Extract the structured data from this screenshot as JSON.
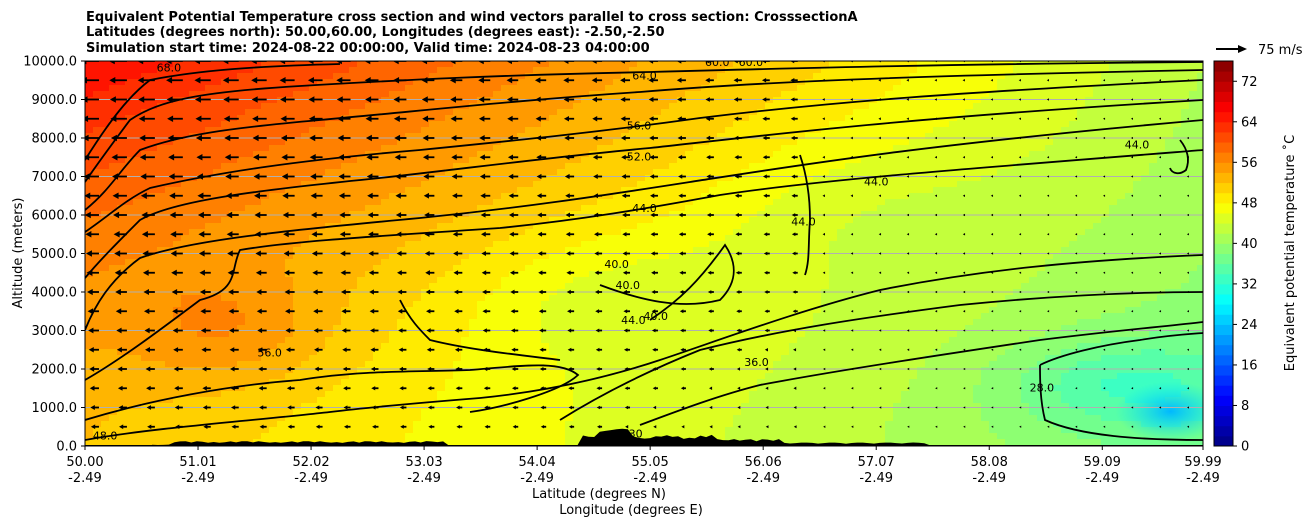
{
  "chart_data": {
    "type": "contourf",
    "title_lines": [
      "Equivalent Potential Temperature cross section and wind vectors parallel to cross section: CrosssectionA",
      "Latitudes (degrees north): 50.00,60.00, Longitudes (degrees east): -2.50,-2.50",
      "Simulation start time: 2024-08-22 00:00:00, Valid time: 2024-08-23 04:00:00"
    ],
    "ylabel": "Altitude (meters)",
    "xlabel_line1": "Latitude (degrees N)",
    "xlabel_line2": "Longitude (degrees E)",
    "ylim": [
      0,
      10000
    ],
    "xlim": [
      50.0,
      59.99
    ],
    "yticks": [
      "0.0",
      "1000.0",
      "2000.0",
      "3000.0",
      "4000.0",
      "5000.0",
      "6000.0",
      "7000.0",
      "8000.0",
      "9000.0",
      "10000.0"
    ],
    "xticks_lat": [
      "50.00",
      "51.01",
      "52.02",
      "53.03",
      "54.04",
      "55.05",
      "56.06",
      "57.07",
      "58.08",
      "59.09",
      "59.99"
    ],
    "xticks_lon": [
      "-2.49",
      "-2.49",
      "-2.49",
      "-2.49",
      "-2.49",
      "-2.49",
      "-2.49",
      "-2.49",
      "-2.49",
      "-2.49",
      "-2.49"
    ],
    "grid_y": true,
    "colorbar": {
      "label": "Equivalent potential temperature ˚C",
      "range": [
        0,
        76
      ],
      "ticks": [
        "0",
        "8",
        "16",
        "24",
        "32",
        "40",
        "48",
        "56",
        "64",
        "72"
      ],
      "colormap": "jet"
    },
    "contour_levels_labeled": [
      "68.0",
      "64.0",
      "60.0",
      "56.0",
      "52.0",
      "48.0",
      "44.0",
      "40.0",
      "36.0",
      "30.0",
      "28.0"
    ],
    "contour_labels": [
      {
        "text": "68.0",
        "lat": 50.75,
        "alt": 9800
      },
      {
        "text": "64.0",
        "lat": 55.0,
        "alt": 9600
      },
      {
        "text": "60.0",
        "lat": 55.65,
        "alt": 9950
      },
      {
        "text": "60.0",
        "lat": 55.95,
        "alt": 9950
      },
      {
        "text": "56.0",
        "lat": 54.95,
        "alt": 8300
      },
      {
        "text": "52.0",
        "lat": 54.95,
        "alt": 7500
      },
      {
        "text": "44.0",
        "lat": 55.0,
        "alt": 6150
      },
      {
        "text": "44.0",
        "lat": 57.07,
        "alt": 6850
      },
      {
        "text": "44.0",
        "lat": 56.42,
        "alt": 5800
      },
      {
        "text": "44.0",
        "lat": 59.4,
        "alt": 7800
      },
      {
        "text": "40.0",
        "lat": 54.75,
        "alt": 4700
      },
      {
        "text": "40.0",
        "lat": 54.85,
        "alt": 4150
      },
      {
        "text": "44.0",
        "lat": 54.9,
        "alt": 3250
      },
      {
        "text": "40.0",
        "lat": 55.1,
        "alt": 3350
      },
      {
        "text": "36.0",
        "lat": 56.0,
        "alt": 2150
      },
      {
        "text": "56.0",
        "lat": 51.65,
        "alt": 2400
      },
      {
        "text": "28.0",
        "lat": 58.55,
        "alt": 1500
      },
      {
        "text": "48.0",
        "lat": 50.18,
        "alt": 250
      },
      {
        "text": "30",
        "lat": 54.92,
        "alt": 300
      }
    ],
    "wind_reference": {
      "label": "75 m/s",
      "speed": 75
    },
    "wind_vectors_note": "u-component parallel to section, westward (toward 50N) in most of domain, decreasing in magnitude toward 60N",
    "terrain": "black filled orography near surface"
  }
}
